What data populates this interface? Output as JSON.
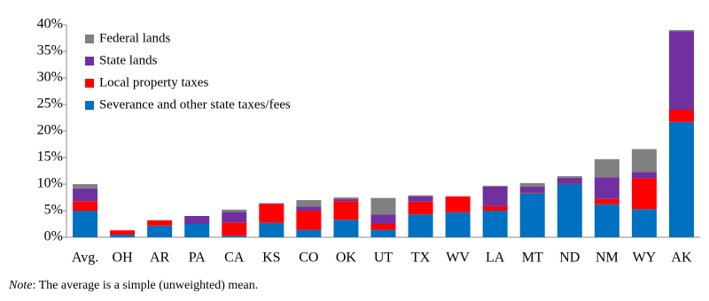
{
  "chart_data": {
    "type": "stacked_bar",
    "categories": [
      "Avg.",
      "OH",
      "AR",
      "PA",
      "CA",
      "KS",
      "CO",
      "OK",
      "UT",
      "TX",
      "WV",
      "LA",
      "MT",
      "ND",
      "NM",
      "WY",
      "AK"
    ],
    "series": [
      {
        "name": "Severance and other state taxes/fees",
        "color": "#0070c0",
        "values": [
          5.0,
          0.5,
          2.2,
          2.5,
          0.3,
          2.7,
          1.4,
          3.3,
          1.4,
          4.3,
          4.7,
          5.0,
          8.3,
          10.0,
          6.2,
          5.3,
          21.7
        ]
      },
      {
        "name": "Local property taxes",
        "color": "#ff0000",
        "values": [
          1.8,
          0.8,
          1.0,
          0,
          2.5,
          3.6,
          3.6,
          3.5,
          1.1,
          2.4,
          3.0,
          0.9,
          0.1,
          0.1,
          1.0,
          5.8,
          2.3
        ]
      },
      {
        "name": "State lands",
        "color": "#7030a0",
        "values": [
          2.4,
          0,
          0,
          1.5,
          2.0,
          0.1,
          0.8,
          0.4,
          1.8,
          1.0,
          0,
          3.6,
          1.1,
          1.1,
          4.1,
          1.2,
          14.8
        ]
      },
      {
        "name": "Federal lands",
        "color": "#808080",
        "values": [
          0.8,
          0,
          0,
          0,
          0.4,
          0,
          1.2,
          0.3,
          3.1,
          0.2,
          0,
          0.2,
          0.7,
          0.3,
          3.4,
          4.3,
          0.2
        ]
      }
    ],
    "ylim": [
      0,
      40
    ],
    "yticks": [
      {
        "value": 0,
        "label": "0%"
      },
      {
        "value": 5,
        "label": "5%"
      },
      {
        "value": 10,
        "label": "10%"
      },
      {
        "value": 15,
        "label": "15%"
      },
      {
        "value": 20,
        "label": "20%"
      },
      {
        "value": 25,
        "label": "25%"
      },
      {
        "value": 30,
        "label": "30%"
      },
      {
        "value": 35,
        "label": "35%"
      },
      {
        "value": 40,
        "label": "40%"
      }
    ],
    "legend": "top-left",
    "note": {
      "label": "Note",
      "text": ": The average is a simple (unweighted) mean."
    }
  }
}
